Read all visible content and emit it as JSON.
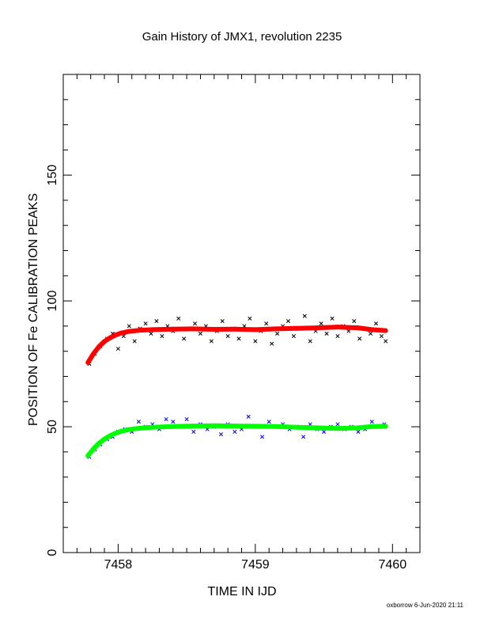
{
  "chart_data": {
    "type": "scatter",
    "title": "Gain History of JMX1, revolution 2235",
    "xlabel": "TIME IN IJD",
    "ylabel": "POSITION OF Fe CALIBRATION PEAKS",
    "xlim": [
      7457.6,
      7460.2
    ],
    "ylim": [
      0,
      190
    ],
    "x_ticks": [
      7458,
      7459,
      7460
    ],
    "y_ticks": [
      0,
      50,
      100,
      150
    ],
    "grid": false,
    "footer": "oxborrow  6-Jun-2020 21:11",
    "colors": {
      "upper_points": "#000000",
      "upper_fit": "#ff0000",
      "lower_points": "#0000ff",
      "lower_fit": "#00ff00"
    },
    "series": [
      {
        "kind": "points",
        "color": "#000000",
        "x": [
          7457.79,
          7457.83,
          7457.87,
          7457.92,
          7457.96,
          7458.0,
          7458.04,
          7458.08,
          7458.12,
          7458.16,
          7458.2,
          7458.24,
          7458.28,
          7458.32,
          7458.36,
          7458.4,
          7458.44,
          7458.48,
          7458.52,
          7458.56,
          7458.6,
          7458.64,
          7458.68,
          7458.72,
          7458.76,
          7458.8,
          7458.84,
          7458.88,
          7458.92,
          7458.96,
          7459.0,
          7459.04,
          7459.08,
          7459.12,
          7459.16,
          7459.2,
          7459.24,
          7459.28,
          7459.32,
          7459.36,
          7459.4,
          7459.44,
          7459.48,
          7459.52,
          7459.56,
          7459.6,
          7459.64,
          7459.68,
          7459.72,
          7459.76,
          7459.8,
          7459.84,
          7459.88,
          7459.92,
          7459.95
        ],
        "y": [
          75,
          79,
          82,
          85,
          87,
          81,
          86,
          90,
          84,
          89,
          91,
          87,
          92,
          86,
          90,
          88,
          93,
          85,
          89,
          91,
          87,
          90,
          84,
          88,
          92,
          86,
          89,
          85,
          90,
          93,
          84,
          88,
          91,
          83,
          87,
          90,
          92,
          86,
          89,
          94,
          84,
          88,
          91,
          87,
          93,
          86,
          90,
          88,
          92,
          85,
          89,
          87,
          91,
          86,
          84
        ]
      },
      {
        "kind": "fit",
        "color": "#ff0000",
        "x": [
          7457.78,
          7457.82,
          7457.86,
          7457.9,
          7457.94,
          7457.98,
          7458.02,
          7458.08,
          7458.15,
          7458.25,
          7458.4,
          7458.55,
          7458.7,
          7458.85,
          7459.0,
          7459.15,
          7459.3,
          7459.45,
          7459.6,
          7459.75,
          7459.85,
          7459.95
        ],
        "y": [
          75.5,
          79,
          81.8,
          83.9,
          85.3,
          86.4,
          87.2,
          87.9,
          88.3,
          88.6,
          88.8,
          88.9,
          88.7,
          88.8,
          88.6,
          88.9,
          89.1,
          89.3,
          89.6,
          89.3,
          88.6,
          88.2
        ]
      },
      {
        "kind": "points",
        "color": "#0000ff",
        "x": [
          7457.79,
          7457.83,
          7457.87,
          7457.92,
          7457.96,
          7458.0,
          7458.05,
          7458.1,
          7458.15,
          7458.2,
          7458.25,
          7458.3,
          7458.35,
          7458.4,
          7458.45,
          7458.5,
          7458.55,
          7458.6,
          7458.65,
          7458.7,
          7458.75,
          7458.8,
          7458.85,
          7458.9,
          7458.95,
          7459.0,
          7459.05,
          7459.1,
          7459.15,
          7459.2,
          7459.25,
          7459.3,
          7459.35,
          7459.4,
          7459.45,
          7459.5,
          7459.55,
          7459.6,
          7459.65,
          7459.7,
          7459.75,
          7459.8,
          7459.85,
          7459.9,
          7459.94
        ],
        "y": [
          38,
          41,
          43,
          45,
          46,
          48,
          49,
          48,
          52,
          50,
          51,
          49,
          53,
          52,
          50,
          53,
          48,
          51,
          49,
          50,
          47,
          51,
          48,
          49,
          54,
          50,
          46,
          52,
          50,
          51,
          49,
          50,
          46,
          51,
          49,
          48,
          50,
          51,
          49,
          50,
          48,
          49,
          52,
          50,
          51
        ]
      },
      {
        "kind": "fit",
        "color": "#00ff00",
        "x": [
          7457.78,
          7457.82,
          7457.86,
          7457.9,
          7457.94,
          7457.98,
          7458.02,
          7458.08,
          7458.15,
          7458.25,
          7458.4,
          7458.55,
          7458.7,
          7458.85,
          7459.0,
          7459.15,
          7459.3,
          7459.45,
          7459.6,
          7459.75,
          7459.85,
          7459.95
        ],
        "y": [
          38.5,
          41.2,
          43.4,
          45.1,
          46.4,
          47.4,
          48.2,
          48.9,
          49.4,
          49.8,
          50.1,
          50.3,
          50.4,
          50.3,
          50.2,
          50.1,
          49.8,
          49.6,
          49.3,
          49.6,
          50.1,
          50.2
        ]
      }
    ]
  }
}
